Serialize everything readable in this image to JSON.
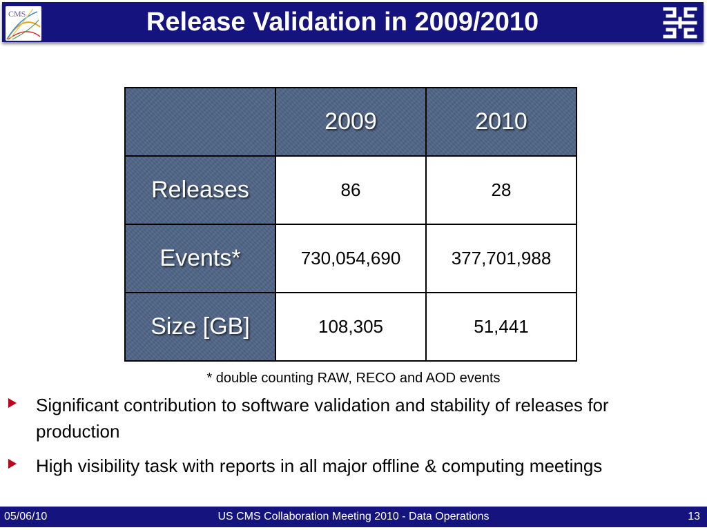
{
  "slide": {
    "title": "Release Validation in 2009/2010"
  },
  "logos": {
    "left": "cms-logo",
    "left_text": "CMS",
    "right": "fermilab-logo"
  },
  "table": {
    "headers": [
      "",
      "2009",
      "2010"
    ],
    "rows": [
      {
        "label": "Releases",
        "values": [
          "86",
          "28"
        ]
      },
      {
        "label": "Events*",
        "values": [
          "730,054,690",
          "377,701,988"
        ]
      },
      {
        "label": "Size [GB]",
        "values": [
          "108,305",
          "51,441"
        ]
      }
    ],
    "header_color": "#4f6486"
  },
  "footnote": "* double counting RAW, RECO and AOD events",
  "bullets": [
    "Significant contribution to software validation and stability of releases for production",
    "High visibility task with reports in all major offline & computing meetings"
  ],
  "footer": {
    "date": "05/06/10",
    "center": "US CMS Collaboration Meeting 2010 - Data Operations",
    "page": "13"
  },
  "colors": {
    "title_bar": "#15137e",
    "bullet_arrow": "#c0001a"
  }
}
